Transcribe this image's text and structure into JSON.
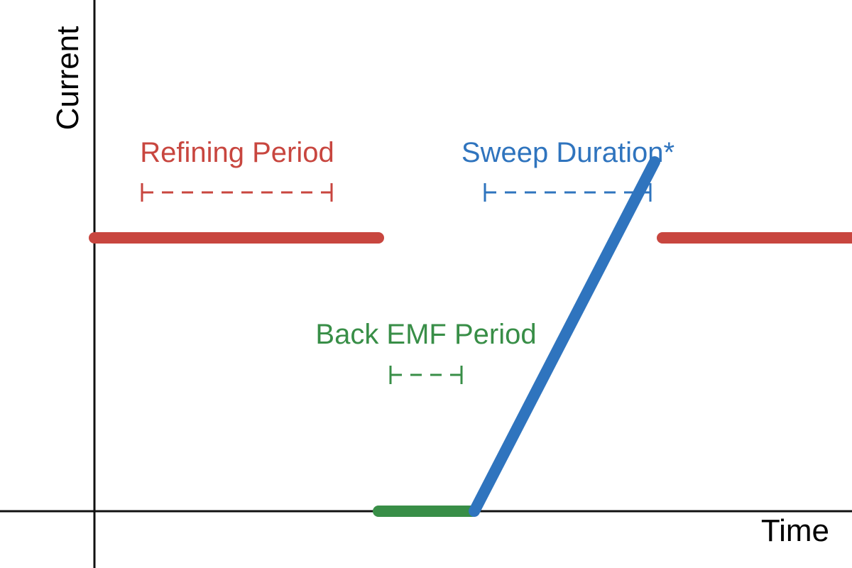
{
  "axes": {
    "x_label": "Time",
    "y_label": "Current"
  },
  "periods": {
    "refining": {
      "label": "Refining Period"
    },
    "sweep": {
      "label": "Sweep Duration*"
    },
    "back_emf": {
      "label": "Back EMF Period"
    }
  },
  "colors": {
    "refining": "#c8463f",
    "sweep": "#2f74be",
    "back_emf": "#388e47",
    "axis": "#111111"
  }
}
